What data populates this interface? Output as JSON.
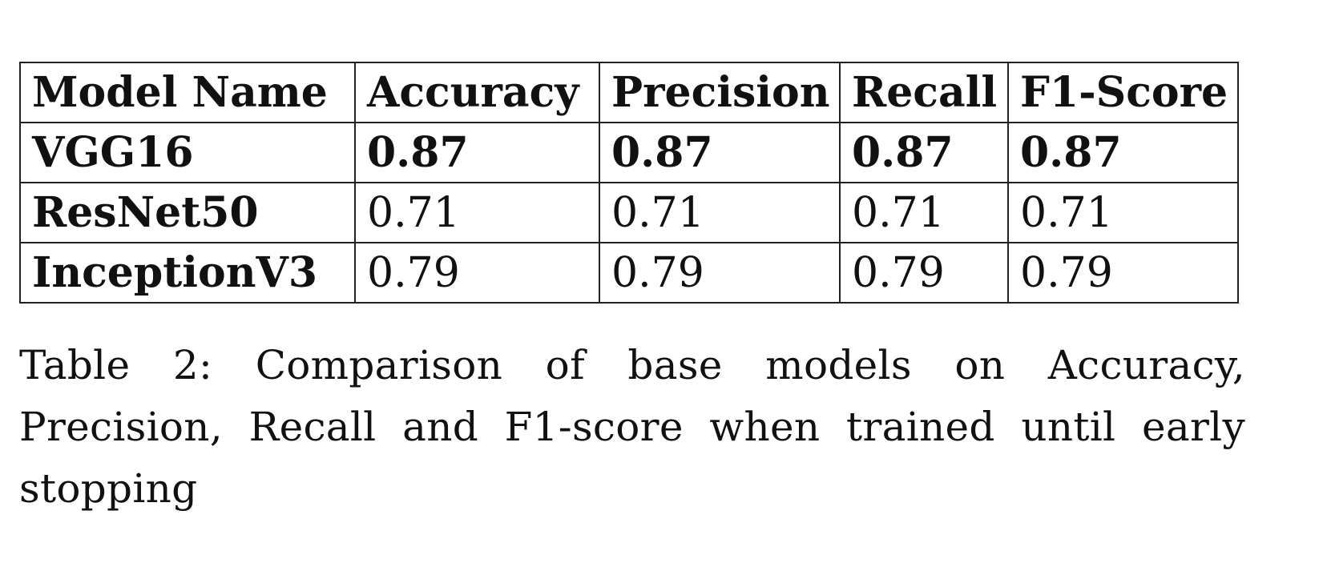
{
  "table": {
    "headers": [
      "Model Name",
      "Accuracy",
      "Precision",
      "Recall",
      "F1-Score"
    ],
    "rows": [
      {
        "model": "VGG16",
        "accuracy": "0.87",
        "precision": "0.87",
        "recall": "0.87",
        "f1": "0.87",
        "best": true
      },
      {
        "model": "ResNet50",
        "accuracy": "0.71",
        "precision": "0.71",
        "recall": "0.71",
        "f1": "0.71",
        "best": false
      },
      {
        "model": "InceptionV3",
        "accuracy": "0.79",
        "precision": "0.79",
        "recall": "0.79",
        "f1": "0.79",
        "best": false
      }
    ]
  },
  "caption": "Table 2:  Comparison of base models on Accuracy, Precision, Recall and F1-score when trained until early stopping"
}
